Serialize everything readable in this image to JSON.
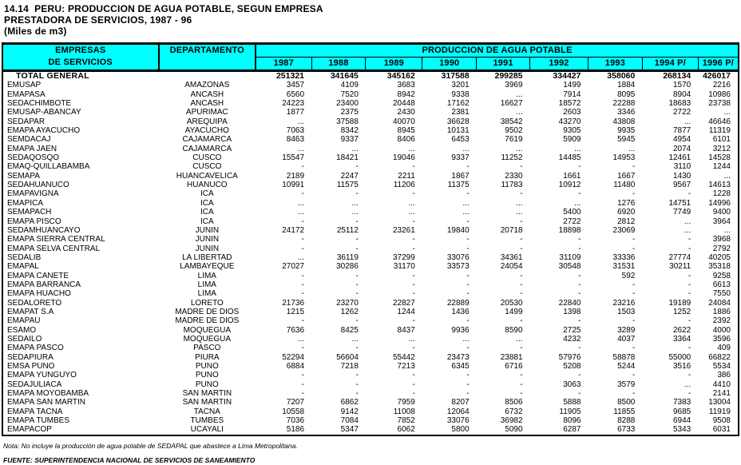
{
  "title": {
    "line1": "14.14  PERU: PRODUCCION DE AGUA POTABLE, SEGUN EMPRESA",
    "line2": "PRESTADORA DE SERVICIOS, 1987 - 96",
    "line3": "(Miles de m3)"
  },
  "table": {
    "header": {
      "empresas_line1": "EMPRESAS",
      "empresas_line2": "DE SERVICIOS",
      "departamento": "DEPARTAMENTO",
      "group_label": "PRODUCCION DE AGUA POTABLE",
      "years": [
        "1987",
        "1988",
        "1989",
        "1990",
        "1991",
        "1992",
        "1993",
        "1994 P/",
        "1996 P/"
      ]
    },
    "total_row": {
      "label": "TOTAL  GENERAL",
      "values": [
        "251321",
        "341645",
        "345162",
        "317588",
        "299285",
        "334427",
        "358060",
        "268134",
        "426017"
      ]
    },
    "rows": [
      {
        "empresa": "EMUSAP",
        "departamento": "AMAZONAS",
        "values": [
          "3457",
          "4109",
          "3683",
          "3201",
          "3969",
          "1499",
          "1884",
          "1570",
          "2216"
        ]
      },
      {
        "empresa": "EMAPASA",
        "departamento": "ANCASH",
        "values": [
          "6560",
          "7520",
          "8942",
          "9338",
          "...",
          "7914",
          "8095",
          "8904",
          "10986"
        ]
      },
      {
        "empresa": "SEDACHIMBOTE",
        "departamento": "ANCASH",
        "values": [
          "24223",
          "23400",
          "20448",
          "17162",
          "16627",
          "18572",
          "22288",
          "18683",
          "23738"
        ]
      },
      {
        "empresa": "EMUSAP-ABANCAY",
        "departamento": "APURIMAC",
        "values": [
          "1877",
          "2375",
          "2430",
          "2381",
          "...",
          "2603",
          "3346",
          "2722",
          "..."
        ]
      },
      {
        "empresa": "SEDAPAR",
        "departamento": "AREQUIPA",
        "values": [
          "...",
          "37588",
          "40070",
          "36628",
          "38542",
          "43270",
          "43808",
          "...",
          "46646"
        ]
      },
      {
        "empresa": "EMAPA AYACUCHO",
        "departamento": "AYACUCHO",
        "values": [
          "7063",
          "8342",
          "8945",
          "10131",
          "9502",
          "9305",
          "9935",
          "7877",
          "11319"
        ]
      },
      {
        "empresa": "SEMDACAJ",
        "departamento": "CAJAMARCA",
        "values": [
          "8463",
          "9337",
          "8406",
          "6453",
          "7619",
          "5909",
          "5945",
          "4954",
          "6101"
        ]
      },
      {
        "empresa": "EMAPA JAEN",
        "departamento": "CAJAMARCA",
        "values": [
          "...",
          "...",
          "...",
          "...",
          "...",
          "...",
          "...",
          "2074",
          "3212"
        ]
      },
      {
        "empresa": "SEDAQOSQO",
        "departamento": "CUSCO",
        "values": [
          "15547",
          "18421",
          "19046",
          "9337",
          "11252",
          "14485",
          "14953",
          "12461",
          "14528"
        ]
      },
      {
        "empresa": "EMAQ-QUILLABAMBA",
        "departamento": "CUSCO",
        "values": [
          "-",
          "-",
          "-",
          "-",
          "-",
          "-",
          "-",
          "3110",
          "1244"
        ]
      },
      {
        "empresa": "SEMAPA",
        "departamento": "HUANCAVELICA",
        "values": [
          "2189",
          "2247",
          "2211",
          "1867",
          "2330",
          "1661",
          "1667",
          "1430",
          "..."
        ]
      },
      {
        "empresa": "SEDAHUANUCO",
        "departamento": "HUANUCO",
        "values": [
          "10991",
          "11575",
          "11206",
          "11375",
          "11783",
          "10912",
          "11480",
          "9567",
          "14613"
        ]
      },
      {
        "empresa": "EMAPAVIGNA",
        "departamento": "ICA",
        "values": [
          "-",
          "-",
          "-",
          "-",
          "-",
          "-",
          "-",
          "-",
          "1228"
        ]
      },
      {
        "empresa": "EMAPICA",
        "departamento": "ICA",
        "values": [
          "...",
          "...",
          "...",
          "...",
          "...",
          "...",
          "1276",
          "14751",
          "14996"
        ]
      },
      {
        "empresa": "SEMAPACH",
        "departamento": "ICA",
        "values": [
          "...",
          "...",
          "...",
          "...",
          "...",
          "5400",
          "6920",
          "7749",
          "9400"
        ]
      },
      {
        "empresa": "EMAPA PISCO",
        "departamento": "ICA",
        "values": [
          "-",
          "-",
          "-",
          "-",
          "-",
          "2722",
          "2812",
          "...",
          "3964"
        ]
      },
      {
        "empresa": "SEDAMHUANCAYO",
        "departamento": "JUNIN",
        "values": [
          "24172",
          "25112",
          "23261",
          "19840",
          "20718",
          "18898",
          "23069",
          "...",
          "..."
        ]
      },
      {
        "empresa": "EMAPA SIERRA CENTRAL",
        "departamento": "JUNIN",
        "values": [
          "-",
          "-",
          "-",
          "-",
          "-",
          "-",
          "-",
          "-",
          "3968"
        ]
      },
      {
        "empresa": "EMAPA SELVA CENTRAL",
        "departamento": "JUNIN",
        "values": [
          "-",
          "-",
          "-",
          "-",
          "-",
          "-",
          "-",
          "-",
          "2792"
        ]
      },
      {
        "empresa": "SEDALIB",
        "departamento": "LA LIBERTAD",
        "values": [
          "...",
          "36119",
          "37299",
          "33076",
          "34361",
          "31109",
          "33336",
          "27774",
          "40205"
        ]
      },
      {
        "empresa": "EMAPAL",
        "departamento": "LAMBAYEQUE",
        "values": [
          "27027",
          "30286",
          "31170",
          "33573",
          "24054",
          "30548",
          "31531",
          "30211",
          "35318"
        ]
      },
      {
        "empresa": "EMAPA CANETE",
        "departamento": "LIMA",
        "values": [
          "-",
          "-",
          "-",
          "-",
          "-",
          "-",
          "592",
          "-",
          "9258"
        ]
      },
      {
        "empresa": "EMAPA BARRANCA",
        "departamento": "LIMA",
        "values": [
          "-",
          "-",
          "-",
          "-",
          "-",
          "-",
          "-",
          "-",
          "6613"
        ]
      },
      {
        "empresa": "EMAPA HUACHO",
        "departamento": "LIMA",
        "values": [
          "-",
          "-",
          "-",
          "-",
          "-",
          "-",
          "-",
          "-",
          "7550"
        ]
      },
      {
        "empresa": "SEDALORETO",
        "departamento": "LORETO",
        "values": [
          "21736",
          "23270",
          "22827",
          "22889",
          "20530",
          "22840",
          "23216",
          "19189",
          "24084"
        ]
      },
      {
        "empresa": "EMAPAT S.A",
        "departamento": "MADRE DE DIOS",
        "values": [
          "1215",
          "1262",
          "1244",
          "1436",
          "1499",
          "1398",
          "1503",
          "1252",
          "1886"
        ]
      },
      {
        "empresa": "EMAPAU",
        "departamento": "MADRE DE DIOS",
        "values": [
          "-",
          "-",
          "-",
          "-",
          "-",
          "-",
          "-",
          "-",
          "2392"
        ]
      },
      {
        "empresa": "ESAMO",
        "departamento": "MOQUEGUA",
        "values": [
          "7636",
          "8425",
          "8437",
          "9936",
          "8590",
          "2725",
          "3289",
          "2622",
          "4000"
        ]
      },
      {
        "empresa": "SEDAILO",
        "departamento": "MOQUEGUA",
        "values": [
          "...",
          "...",
          "...",
          "...",
          "...",
          "4232",
          "4037",
          "3364",
          "3596"
        ]
      },
      {
        "empresa": "EMAPA PASCO",
        "departamento": "PASCO",
        "values": [
          "-",
          "-",
          "-",
          "-",
          "-",
          "-",
          "-",
          "-",
          "409"
        ]
      },
      {
        "empresa": "SEDAPIURA",
        "departamento": "PIURA",
        "values": [
          "52294",
          "56604",
          "55442",
          "23473",
          "23881",
          "57976",
          "58878",
          "55000",
          "66822"
        ]
      },
      {
        "empresa": "EMSA PUNO",
        "departamento": "PUNO",
        "values": [
          "6884",
          "7218",
          "7213",
          "6345",
          "6716",
          "5208",
          "5244",
          "3516",
          "5534"
        ]
      },
      {
        "empresa": "EMAPA YUNGUYO",
        "departamento": "PUNO",
        "values": [
          "-",
          "-",
          "-",
          "-",
          "-",
          "-",
          "-",
          "-",
          "386"
        ]
      },
      {
        "empresa": "SEDAJULIACA",
        "departamento": "PUNO",
        "values": [
          "-",
          "-",
          "-",
          "-",
          "-",
          "3063",
          "3579",
          "...",
          "4410"
        ]
      },
      {
        "empresa": "EMAPA MOYOBAMBA",
        "departamento": "SAN MARTIN",
        "values": [
          "-",
          "-",
          "-",
          "-",
          "-",
          "-",
          "-",
          "-",
          "2141"
        ]
      },
      {
        "empresa": "EMAPA SAN MARTIN",
        "departamento": "SAN MARTIN",
        "values": [
          "7207",
          "6862",
          "7959",
          "8207",
          "8506",
          "5888",
          "8500",
          "7383",
          "13004"
        ]
      },
      {
        "empresa": "EMAPA TACNA",
        "departamento": "TACNA",
        "values": [
          "10558",
          "9142",
          "11008",
          "12064",
          "6732",
          "11905",
          "11855",
          "9685",
          "11919"
        ]
      },
      {
        "empresa": "EMAPA TUMBES",
        "departamento": "TUMBES",
        "values": [
          "7036",
          "7084",
          "7852",
          "33076",
          "36982",
          "8096",
          "8288",
          "6944",
          "9508"
        ]
      },
      {
        "empresa": "EMAPACOP",
        "departamento": "UCAYALI",
        "values": [
          "5186",
          "5347",
          "6062",
          "5800",
          "5090",
          "6287",
          "6733",
          "5343",
          "6031"
        ]
      }
    ]
  },
  "footer": {
    "nota": "Nota: No incluye la producción de agua potable de SEDAPAL que abastece a Lima Metropolitana.",
    "fuente": "FUENTE: SUPERINTENDENCIA NACIONAL DE SERVICIOS DE SANEAMIENTO"
  },
  "colors": {
    "header_bg": "#00ffff",
    "border": "#000000",
    "text": "#000000",
    "page_bg": "#ffffff"
  }
}
